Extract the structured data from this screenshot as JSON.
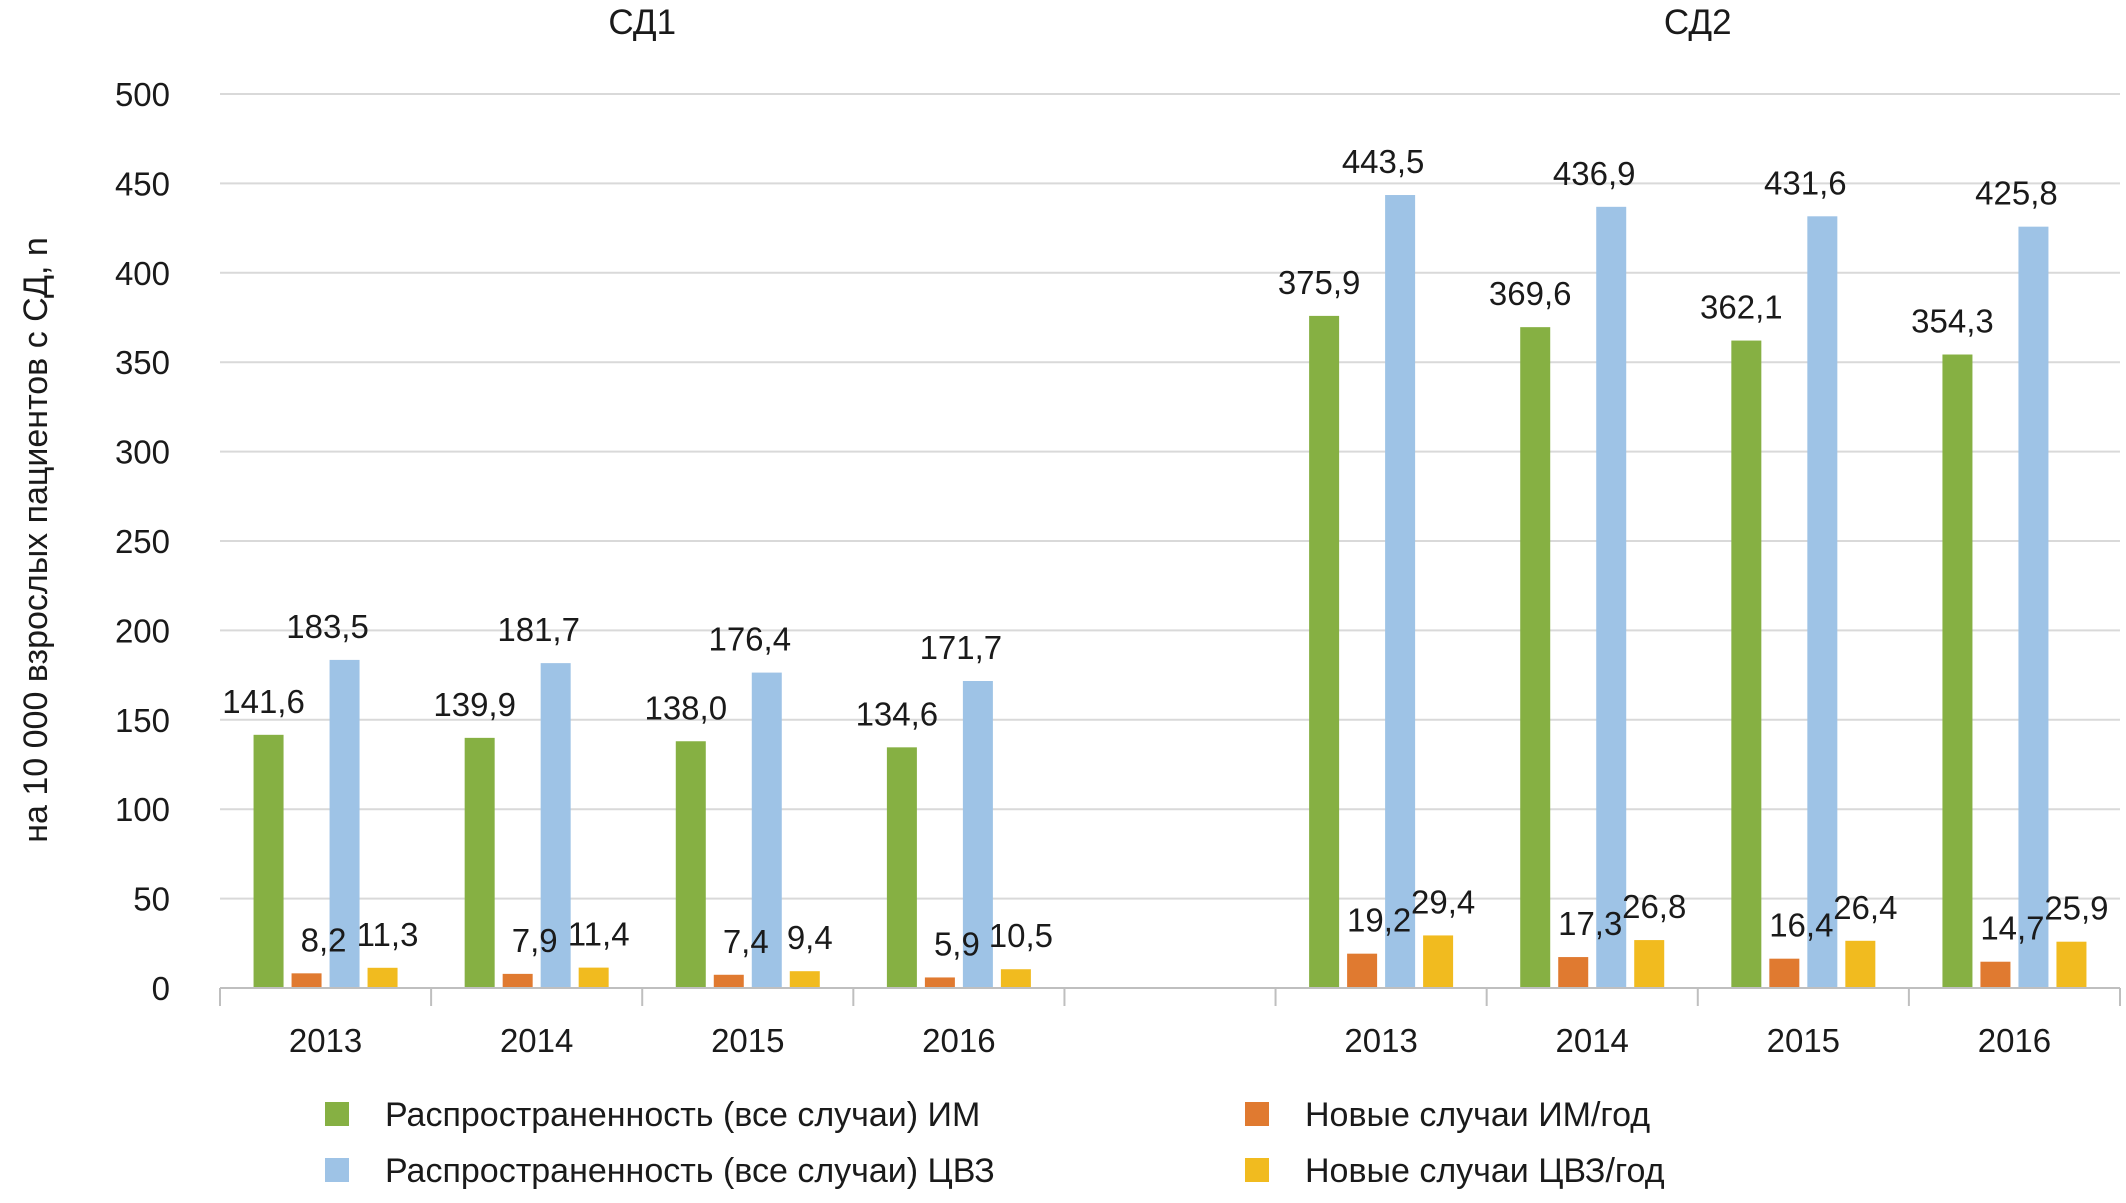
{
  "chart_data": {
    "type": "bar",
    "ylabel": "на 10 000 взрослых пациентов с СД, n",
    "ylim": [
      0,
      500
    ],
    "yticks": [
      0,
      50,
      100,
      150,
      200,
      250,
      300,
      350,
      400,
      450,
      500
    ],
    "grid": true,
    "legend_position": "bottom",
    "groups": [
      {
        "name": "СД1",
        "categories": [
          "2013",
          "2014",
          "2015",
          "2016"
        ],
        "values": [
          [
            141.6,
            183.5,
            8.2,
            11.3
          ],
          [
            139.9,
            181.7,
            7.9,
            11.4
          ],
          [
            138.0,
            176.4,
            7.4,
            9.4
          ],
          [
            134.6,
            171.7,
            5.9,
            10.5
          ]
        ],
        "labels": [
          [
            "141,6",
            "183,5",
            "8,2",
            "11,3"
          ],
          [
            "139,9",
            "181,7",
            "7,9",
            "11,4"
          ],
          [
            "138,0",
            "176,4",
            "7,4",
            "9,4"
          ],
          [
            "134,6",
            "171,7",
            "5,9",
            "10,5"
          ]
        ]
      },
      {
        "name": "СД2",
        "categories": [
          "2013",
          "2014",
          "2015",
          "2016"
        ],
        "values": [
          [
            375.9,
            443.5,
            19.2,
            29.4
          ],
          [
            369.6,
            436.9,
            17.3,
            26.8
          ],
          [
            362.1,
            431.6,
            16.4,
            26.4
          ],
          [
            354.3,
            425.8,
            14.7,
            25.9
          ]
        ],
        "labels": [
          [
            "375,9",
            "443,5",
            "19,2",
            "29,4"
          ],
          [
            "369,6",
            "436,9",
            "17,3",
            "26,8"
          ],
          [
            "362,1",
            "431,6",
            "16,4",
            "26,4"
          ],
          [
            "354,3",
            "425,8",
            "14,7",
            "25,9"
          ]
        ]
      }
    ],
    "series": [
      {
        "name": "Распространенность (все случаи) ИМ",
        "color": "#86b043"
      },
      {
        "name": "Распространенность (все случаи) ЦВЗ",
        "color": "#9ec3e6"
      },
      {
        "name": "Новые случаи ИМ/год",
        "color": "#e07a30"
      },
      {
        "name": "Новые случаи ЦВЗ/год",
        "color": "#f1bb1f"
      }
    ]
  }
}
